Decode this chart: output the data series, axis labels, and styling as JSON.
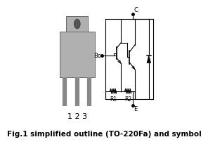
{
  "title": "Fig.1 simplified outline (TO-220Fa) and symbol",
  "bg_color": "#ffffff",
  "text_color": "#000000",
  "line_color": "#000000",
  "gray_body": "#b0b0b0",
  "gray_lead": "#888888",
  "gray_dark": "#666666",
  "label_123": "1 2 3",
  "label_B": "Bo",
  "label_C": "C",
  "label_E": "E",
  "label_R1": "R1",
  "label_R2": "R2"
}
